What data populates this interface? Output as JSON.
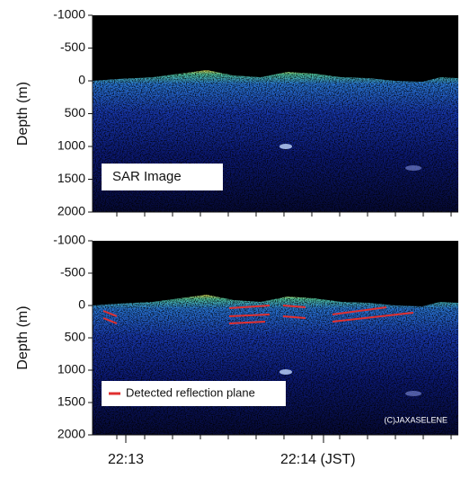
{
  "chart_data": [
    {
      "type": "image",
      "y_label": "Depth (m)",
      "ylim": [
        -1000,
        2000
      ],
      "y_inverted": true,
      "yticks": [
        -1000,
        -500,
        0,
        500,
        1000,
        1500,
        2000
      ],
      "annotation": "SAR Image"
    },
    {
      "type": "image",
      "y_label": "Depth (m)",
      "ylim": [
        -1000,
        2000
      ],
      "y_inverted": true,
      "yticks": [
        -1000,
        -500,
        0,
        500,
        1000,
        1500,
        2000
      ],
      "legend": "Detected reflection plane",
      "legend_color": "#e03030",
      "credit": "(C)JAXASELENE",
      "categories": [
        "22:13",
        "22:14 (JST)"
      ]
    }
  ]
}
